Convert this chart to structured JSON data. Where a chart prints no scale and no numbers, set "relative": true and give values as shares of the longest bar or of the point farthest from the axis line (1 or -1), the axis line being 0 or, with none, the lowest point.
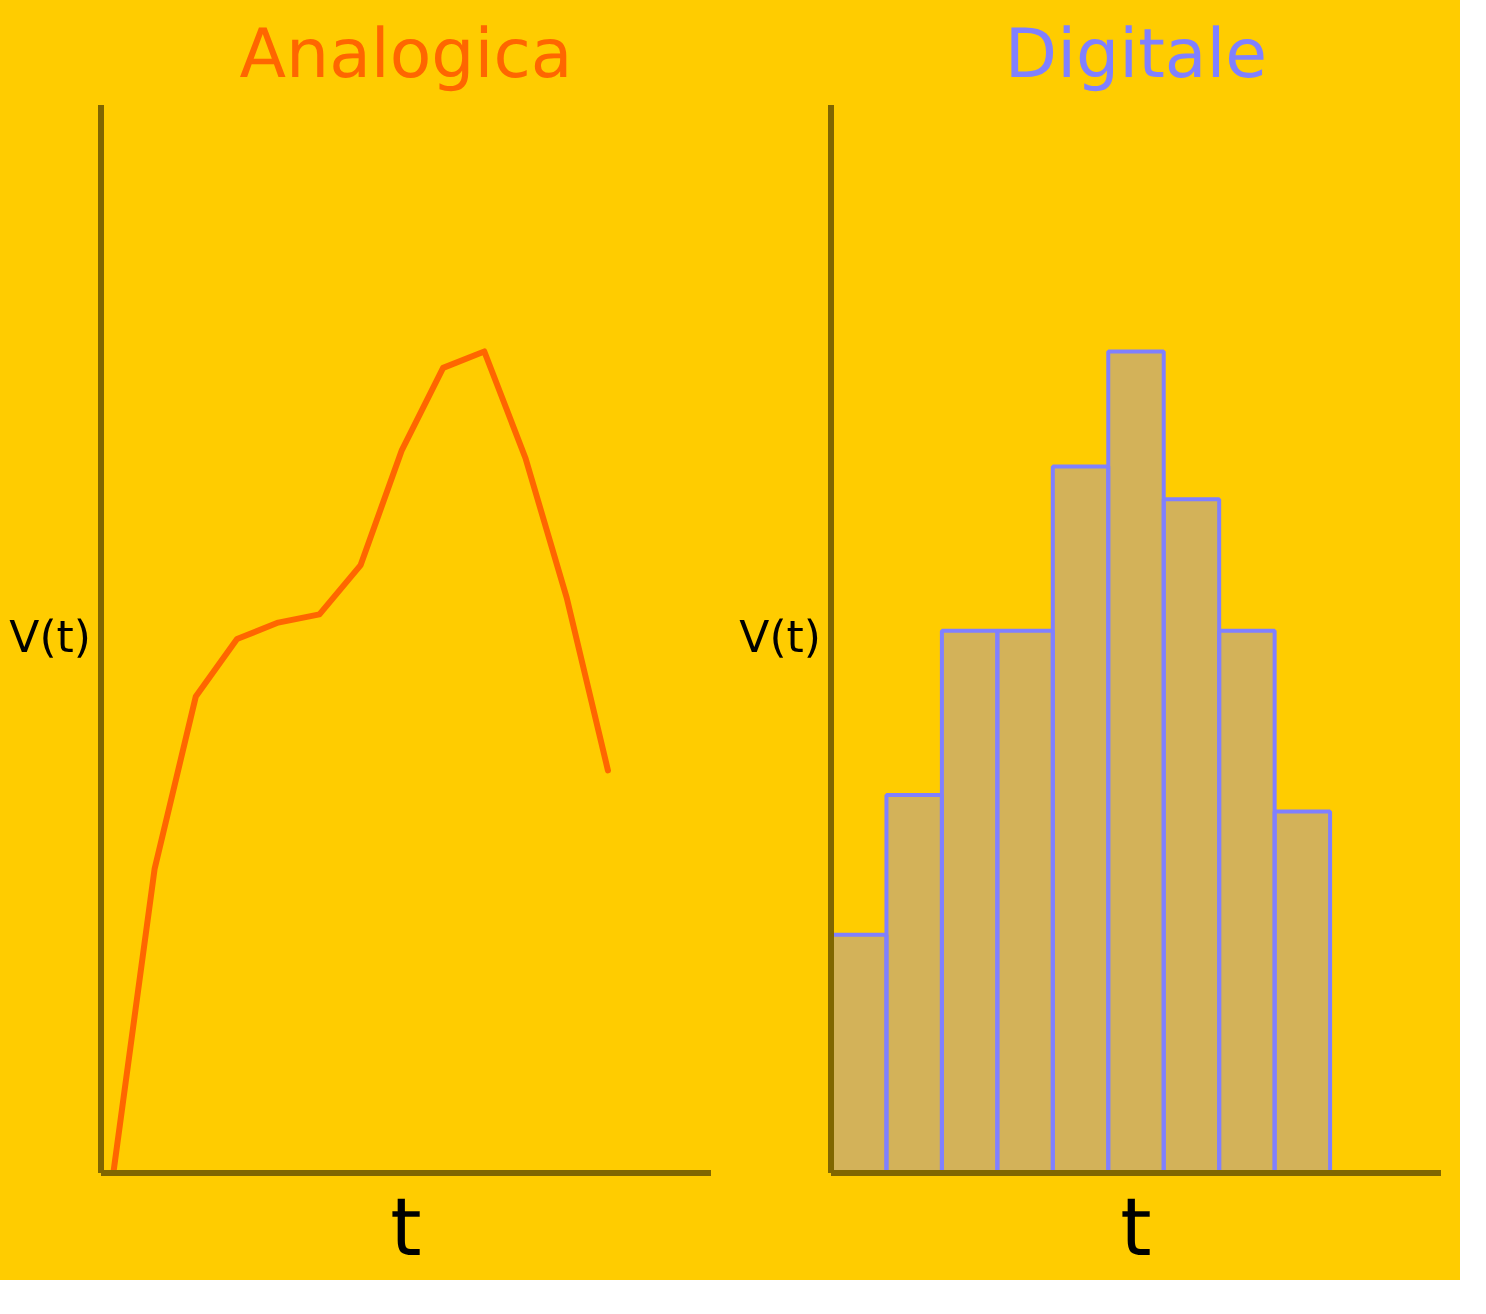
{
  "chart_data": [
    {
      "type": "line",
      "title": "Analogica",
      "xlabel": "t",
      "ylabel": "V(t)",
      "relative": true,
      "categories": [
        null,
        null,
        null,
        null,
        null,
        null,
        null,
        null,
        null,
        null,
        null,
        null,
        null
      ],
      "series": [
        {
          "color": "#ff6600",
          "values": [
            0,
            0.37,
            0.58,
            0.65,
            0.67,
            0.68,
            0.74,
            0.88,
            0.98,
            1,
            0.87,
            0.7,
            0.49
          ]
        }
      ]
    },
    {
      "type": "bar",
      "title": "Digitale",
      "xlabel": "t",
      "ylabel": "V(t)",
      "relative": true,
      "categories": [
        null,
        null,
        null,
        null,
        null,
        null,
        null,
        null,
        null
      ],
      "series": [
        {
          "color": "#8080ff",
          "values": [
            0.29,
            0.46,
            0.66,
            0.66,
            0.86,
            1,
            0.82,
            0.66,
            0.44
          ]
        }
      ]
    }
  ]
}
